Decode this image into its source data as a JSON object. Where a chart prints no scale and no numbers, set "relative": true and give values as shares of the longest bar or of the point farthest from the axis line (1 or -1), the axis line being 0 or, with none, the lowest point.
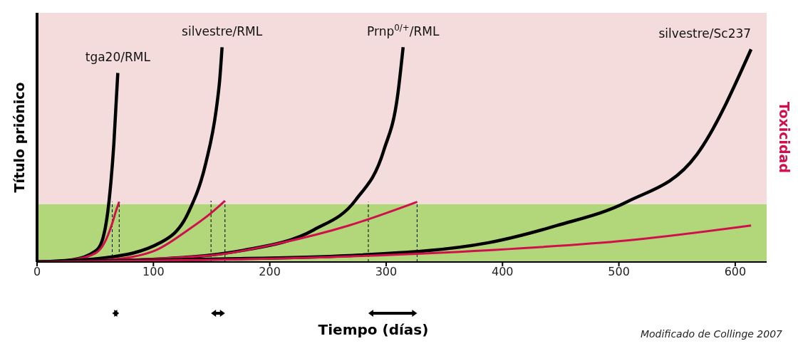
{
  "chart_data": {
    "type": "line",
    "relative": true,
    "xlabel": "Tiempo (días)",
    "ylabel": "Título priónico",
    "y2label": "Toxicidad",
    "xlim": [
      0,
      627
    ],
    "xticks": [
      0,
      100,
      200,
      300,
      400,
      500,
      600
    ],
    "marker": "none",
    "line_style": "solid",
    "series": [
      {
        "color": "#000000",
        "x": [
          0,
          30,
          50,
          56,
          62,
          66,
          69.4
        ],
        "values": [
          0,
          0.01,
          0.05,
          0.1,
          0.29,
          0.55,
          0.88
        ]
      },
      {
        "color": "#d0104c",
        "x": [
          0,
          30,
          50,
          58,
          64,
          68,
          70.6
        ],
        "values": [
          0,
          0.01,
          0.04,
          0.09,
          0.17,
          0.24,
          0.28
        ]
      },
      {
        "color": "#000000",
        "x": [
          0,
          59,
          106,
          130,
          145,
          154,
          157,
          159
        ],
        "values": [
          0,
          0.02,
          0.09,
          0.23,
          0.46,
          0.71,
          0.85,
          1.0
        ]
      },
      {
        "color": "#d0104c",
        "x": [
          0,
          60,
          100,
          130,
          150,
          161.5
        ],
        "values": [
          0,
          0.01,
          0.05,
          0.15,
          0.23,
          0.285
        ]
      },
      {
        "color": "#000000",
        "x": [
          0,
          88,
          178,
          238,
          274,
          298,
          310,
          314.6
        ],
        "values": [
          0,
          0.01,
          0.055,
          0.15,
          0.29,
          0.52,
          0.78,
          1.0
        ]
      },
      {
        "color": "#d0104c",
        "x": [
          0,
          148,
          208,
          268,
          326.6
        ],
        "values": [
          0,
          0.03,
          0.087,
          0.17,
          0.28
        ]
      },
      {
        "color": "#000000",
        "x": [
          0,
          148,
          268,
          388,
          447,
          507,
          567,
          613.6
        ],
        "values": [
          0,
          0.013,
          0.03,
          0.09,
          0.17,
          0.28,
          0.5,
          0.99
        ]
      },
      {
        "color": "#d0104c",
        "x": [
          0,
          148,
          268,
          388,
          507,
          613.6
        ],
        "values": [
          0,
          0.01,
          0.026,
          0.055,
          0.1,
          0.17
        ]
      }
    ],
    "bands": [
      {
        "axis": "y",
        "from": 0,
        "to": 0.27,
        "color": "#b2d67a"
      },
      {
        "axis": "y",
        "from": 0.27,
        "to": 1.16,
        "color": "#f5dcdc"
      }
    ],
    "ref_lines": [
      {
        "axis": "x",
        "value": 64.6,
        "line_style": "dashed"
      },
      {
        "axis": "x",
        "value": 70.6,
        "line_style": "dashed"
      },
      {
        "axis": "x",
        "value": 149.5,
        "line_style": "dashed"
      },
      {
        "axis": "x",
        "value": 161.5,
        "line_style": "dashed"
      },
      {
        "axis": "x",
        "value": 284.7,
        "line_style": "dashed"
      },
      {
        "axis": "x",
        "value": 326.6,
        "line_style": "dashed"
      }
    ],
    "annotations": [
      {
        "text": "tga20/RML",
        "x": 69.4,
        "y": 0.88
      },
      {
        "text": "silvestre/RML",
        "x": 159,
        "y": 1.0
      },
      {
        "text": "Prnp$^{0/+}$/RML",
        "x": 314.6,
        "y": 1.0
      },
      {
        "text": "silvestre/Sc237",
        "x": 613.6,
        "y": 0.99
      },
      "Modificado de Collinge 2007"
    ]
  }
}
